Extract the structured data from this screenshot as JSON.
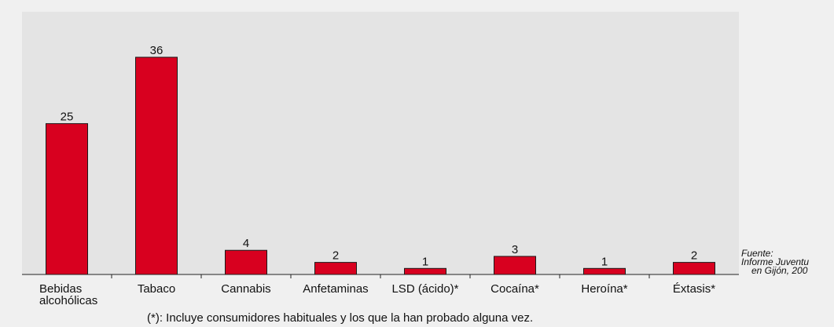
{
  "colors": {
    "bar": "#d8001f",
    "plot_background": "#e4e4e4",
    "page_background": "#f0f0f0"
  },
  "source": {
    "line1": "Fuente:",
    "line2": "Informe Juventu",
    "line3": "en Gijón, 200"
  },
  "footnote": "(*): Incluye consumidores habituales y los que la han probado alguna vez.",
  "chart_data": {
    "type": "bar",
    "title": "",
    "xlabel": "",
    "ylabel": "",
    "categories": [
      [
        "Bebidas",
        "alcohólicas"
      ],
      [
        "Tabaco"
      ],
      [
        "Cannabis"
      ],
      [
        "Anfetaminas"
      ],
      [
        "LSD (ácido)*"
      ],
      [
        "Cocaína*"
      ],
      [
        "Heroína*"
      ],
      [
        "Éxtasis*"
      ]
    ],
    "values": [
      25,
      36,
      4,
      2,
      1,
      3,
      1,
      2
    ],
    "ylim": [
      0,
      36
    ],
    "grid": false,
    "legend": "none"
  }
}
